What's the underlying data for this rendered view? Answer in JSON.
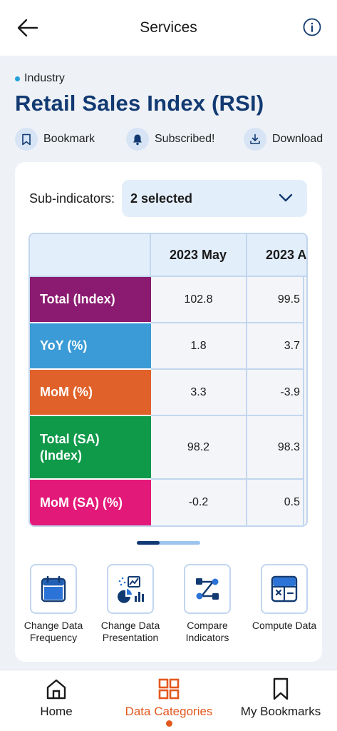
{
  "header": {
    "title": "Services"
  },
  "category": "Industry",
  "indicator_title": "Retail Sales Index (RSI)",
  "actions": [
    {
      "label": "Bookmark",
      "icon": "bookmark-icon"
    },
    {
      "label": "Subscribed!",
      "icon": "bell-icon"
    },
    {
      "label": "Download",
      "icon": "download-icon"
    }
  ],
  "sub_indicators": {
    "label": "Sub-indicators:",
    "value": "2 selected"
  },
  "table": {
    "columns": [
      "2023 May",
      "2023 A"
    ],
    "rows": [
      {
        "label": "Total (Index)",
        "color": "#8b1b70",
        "values": [
          "102.8",
          "99.5"
        ]
      },
      {
        "label": "YoY (%)",
        "color": "#3a9bd6",
        "values": [
          "1.8",
          "3.7"
        ]
      },
      {
        "label": "MoM (%)",
        "color": "#e0622a",
        "values": [
          "3.3",
          "-3.9"
        ]
      },
      {
        "label": "Total (SA) (Index)",
        "color": "#0f9a4a",
        "values": [
          "98.2",
          "98.3"
        ]
      },
      {
        "label": "MoM (SA) (%)",
        "color": "#e3197a",
        "values": [
          "-0.2",
          "0.5"
        ]
      }
    ]
  },
  "tools": [
    {
      "label": "Change Data Frequency",
      "icon": "calendar-icon"
    },
    {
      "label": "Change Data Presentation",
      "icon": "chart-presentation-icon"
    },
    {
      "label": "Compare Indicators",
      "icon": "compare-nodes-icon"
    },
    {
      "label": "Compute Data",
      "icon": "calculator-icon"
    }
  ],
  "bottom_nav": [
    {
      "label": "Home",
      "icon": "home-icon",
      "active": false
    },
    {
      "label": "Data Categories",
      "icon": "grid-icon",
      "active": true
    },
    {
      "label": "My Bookmarks",
      "icon": "bookmark-icon",
      "active": false
    }
  ],
  "colors": {
    "brand": "#123a72",
    "accent": "#e2581f",
    "accent_blue": "#22a0dc"
  }
}
